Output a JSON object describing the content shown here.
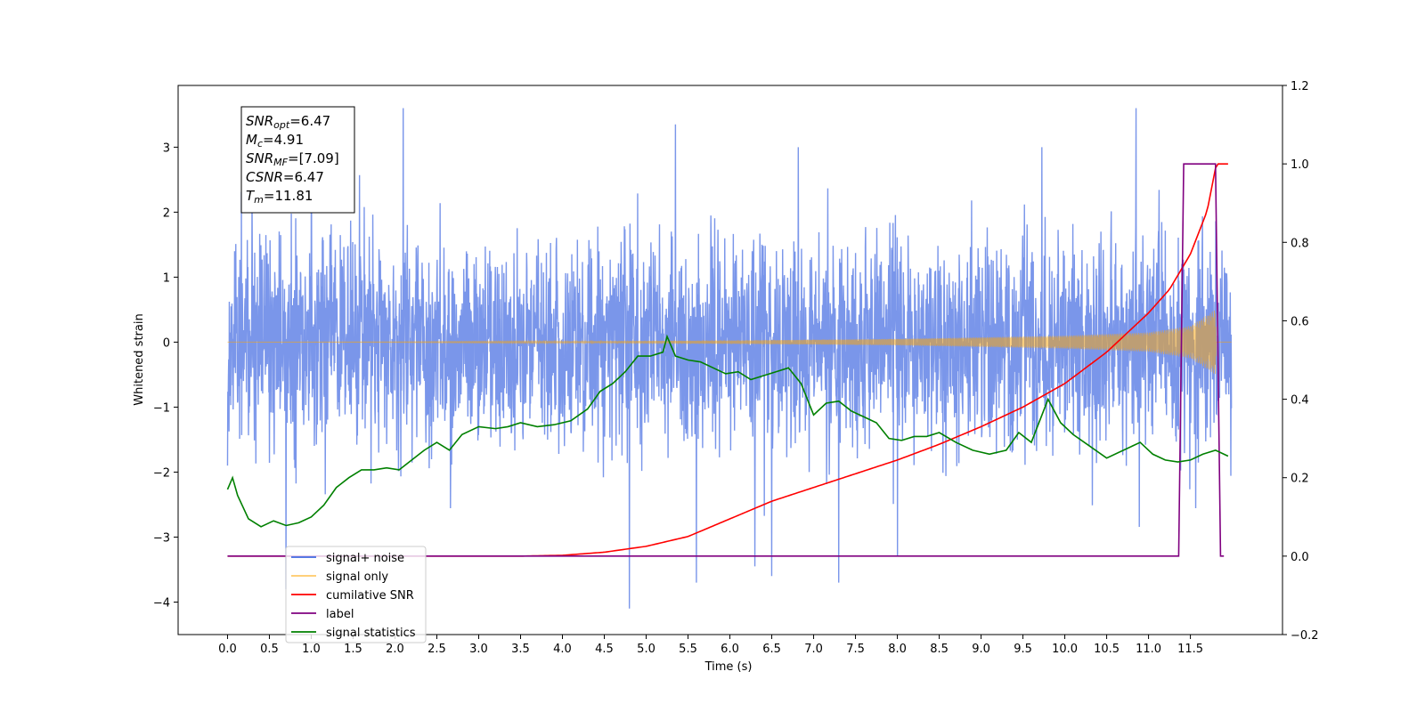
{
  "chart_data": {
    "type": "line",
    "xlabel": "Time (s)",
    "ylabel": "Whitened strain",
    "x_ticks": [
      0.0,
      0.5,
      1.0,
      1.5,
      2.0,
      2.5,
      3.0,
      3.5,
      4.0,
      4.5,
      5.0,
      5.5,
      6.0,
      6.5,
      7.0,
      7.5,
      8.0,
      8.5,
      9.0,
      9.5,
      10.0,
      10.5,
      11.0,
      11.5
    ],
    "x_tick_labels": [
      "0.0",
      "0.5",
      "1.0",
      "1.5",
      "2.0",
      "2.5",
      "3.0",
      "3.5",
      "4.0",
      "4.5",
      "5.0",
      "5.5",
      "6.0",
      "6.5",
      "7.0",
      "7.5",
      "8.0",
      "8.5",
      "9.0",
      "9.5",
      "10.0",
      "10.5",
      "11.0",
      "11.5"
    ],
    "xlim": [
      -0.59,
      12.6
    ],
    "y_left": {
      "lim": [
        -4.5,
        3.95
      ],
      "ticks": [
        -4,
        -3,
        -2,
        -1,
        0,
        1,
        2,
        3
      ],
      "tick_labels": [
        "−4",
        "−3",
        "−2",
        "−1",
        "0",
        "1",
        "2",
        "3"
      ]
    },
    "y_right": {
      "lim": [
        -0.2,
        1.2
      ],
      "ticks": [
        -0.2,
        0.0,
        0.2,
        0.4,
        0.6,
        0.8,
        1.0,
        1.2
      ],
      "tick_labels": [
        "−0.2",
        "0.0",
        "0.2",
        "0.4",
        "0.6",
        "0.8",
        "1.0",
        "1.2"
      ]
    },
    "annotation": [
      {
        "sym": "SNR",
        "sub": "opt",
        "val": "=6.47"
      },
      {
        "sym": "M",
        "sub": "c",
        "val": "=4.91"
      },
      {
        "sym": "SNR",
        "sub": "MF",
        "val": "=[7.09]"
      },
      {
        "sym": "CSNR",
        "sub": "",
        "val": "=6.47"
      },
      {
        "sym": "T",
        "sub": "m",
        "val": "=11.81"
      }
    ],
    "legend": {
      "placement": "lower-left",
      "entries": [
        {
          "label": "signal+ noise",
          "color": "#4169e1"
        },
        {
          "label": "signal only",
          "color": "#ffa500"
        },
        {
          "label": "cumilative SNR",
          "color": "#ff0000"
        },
        {
          "label": "label",
          "color": "#800080"
        },
        {
          "label": "signal statistics",
          "color": "#008000"
        }
      ]
    },
    "series": [
      {
        "name": "signal+ noise",
        "axis": "left",
        "color": "#4169e1",
        "t_start": 0.0,
        "t_end": 11.99,
        "approx_std": 0.8,
        "envelope": [
          -2.2,
          1.6
        ],
        "peaks": [
          {
            "x": 2.1,
            "y": 3.6
          },
          {
            "x": 5.35,
            "y": 3.35
          },
          {
            "x": 10.85,
            "y": 3.6
          },
          {
            "x": 1.0,
            "y": 3.1
          },
          {
            "x": 4.8,
            "y": -4.1
          },
          {
            "x": 0.7,
            "y": -3.8
          },
          {
            "x": 5.6,
            "y": -3.7
          },
          {
            "x": 6.5,
            "y": -3.6
          },
          {
            "x": 7.3,
            "y": -3.7
          },
          {
            "x": 6.3,
            "y": -3.45
          },
          {
            "x": 8.0,
            "y": -3.3
          }
        ]
      },
      {
        "name": "signal only",
        "axis": "left",
        "color": "#ffa500",
        "t_start": 0.0,
        "t_end": 11.99,
        "amplitude_envelope": {
          "x": [
            0.0,
            2.0,
            4.0,
            6.0,
            8.0,
            10.0,
            11.0,
            11.5,
            11.8,
            11.81,
            12.0
          ],
          "amp": [
            0.0,
            0.003,
            0.01,
            0.025,
            0.05,
            0.1,
            0.15,
            0.25,
            0.5,
            0.0,
            0.0
          ]
        }
      },
      {
        "name": "cumilative SNR",
        "axis": "right",
        "color": "#ff0000",
        "x": [
          0.0,
          3.0,
          3.5,
          4.0,
          4.5,
          5.0,
          5.5,
          6.0,
          6.5,
          7.0,
          7.5,
          8.0,
          8.5,
          9.0,
          9.5,
          10.0,
          10.5,
          11.0,
          11.25,
          11.5,
          11.7,
          11.81,
          11.95
        ],
        "y": [
          0.0,
          0.0,
          0.0,
          0.002,
          0.01,
          0.025,
          0.05,
          0.095,
          0.14,
          0.175,
          0.21,
          0.245,
          0.285,
          0.33,
          0.38,
          0.44,
          0.52,
          0.62,
          0.68,
          0.77,
          0.88,
          1.0,
          1.0
        ]
      },
      {
        "name": "label",
        "axis": "right",
        "color": "#800080",
        "x": [
          0.0,
          11.36,
          11.42,
          11.8,
          11.86,
          11.9
        ],
        "y": [
          0.0,
          0.0,
          1.0,
          1.0,
          0.0,
          0.0
        ]
      },
      {
        "name": "signal statistics",
        "axis": "right",
        "color": "#008000",
        "x": [
          0.0,
          0.06,
          0.12,
          0.25,
          0.4,
          0.55,
          0.7,
          0.85,
          1.0,
          1.15,
          1.3,
          1.45,
          1.6,
          1.75,
          1.9,
          2.05,
          2.2,
          2.35,
          2.5,
          2.65,
          2.8,
          3.0,
          3.2,
          3.35,
          3.5,
          3.7,
          3.9,
          4.1,
          4.3,
          4.45,
          4.6,
          4.75,
          4.9,
          5.05,
          5.2,
          5.25,
          5.35,
          5.5,
          5.65,
          5.8,
          5.95,
          6.1,
          6.25,
          6.4,
          6.55,
          6.7,
          6.85,
          7.0,
          7.15,
          7.3,
          7.45,
          7.6,
          7.75,
          7.9,
          8.05,
          8.2,
          8.35,
          8.5,
          8.7,
          8.9,
          9.1,
          9.3,
          9.45,
          9.6,
          9.8,
          9.95,
          10.1,
          10.3,
          10.5,
          10.7,
          10.9,
          11.05,
          11.2,
          11.35,
          11.5,
          11.65,
          11.8,
          11.95
        ],
        "y": [
          0.17,
          0.2,
          0.155,
          0.095,
          0.075,
          0.09,
          0.078,
          0.085,
          0.1,
          0.13,
          0.175,
          0.2,
          0.22,
          0.22,
          0.225,
          0.22,
          0.245,
          0.27,
          0.29,
          0.27,
          0.31,
          0.33,
          0.325,
          0.33,
          0.34,
          0.33,
          0.335,
          0.345,
          0.375,
          0.42,
          0.44,
          0.47,
          0.51,
          0.51,
          0.52,
          0.56,
          0.51,
          0.5,
          0.495,
          0.48,
          0.465,
          0.47,
          0.45,
          0.46,
          0.47,
          0.48,
          0.44,
          0.36,
          0.39,
          0.395,
          0.37,
          0.355,
          0.34,
          0.3,
          0.295,
          0.305,
          0.305,
          0.315,
          0.29,
          0.27,
          0.26,
          0.27,
          0.315,
          0.29,
          0.4,
          0.34,
          0.31,
          0.28,
          0.25,
          0.27,
          0.29,
          0.26,
          0.245,
          0.24,
          0.245,
          0.26,
          0.27,
          0.255
        ]
      }
    ]
  }
}
